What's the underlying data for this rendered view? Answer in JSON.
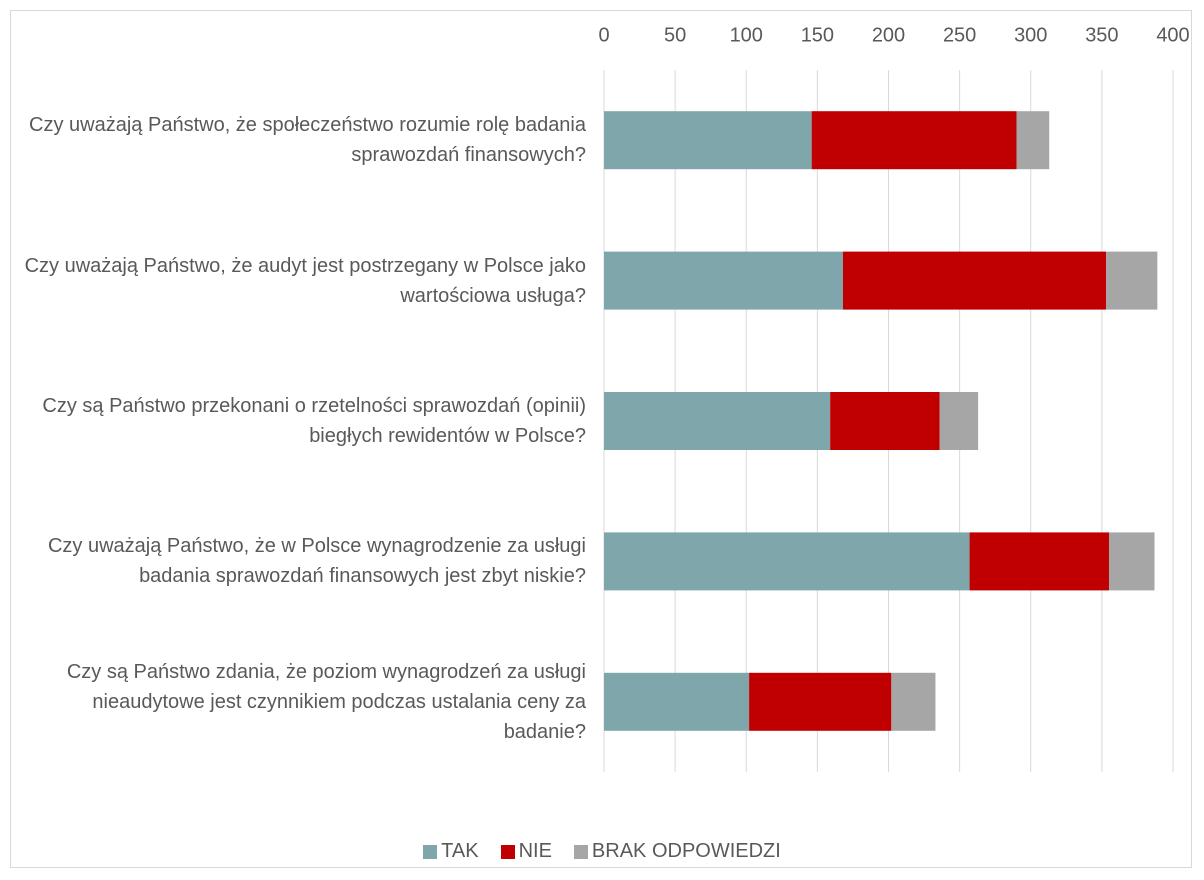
{
  "chart_data": {
    "type": "bar",
    "orientation": "horizontal",
    "stacked": true,
    "categories": [
      "Czy uważają Państwo, że społeczeństwo rozumie rolę badania sprawozdań finansowych?",
      "Czy uważają Państwo, że audyt jest postrzegany w Polsce jako wartościowa usługa?",
      "Czy są Państwo przekonani o rzetelności sprawozdań (opinii) biegłych rewidentów w Polsce?",
      "Czy uważają Państwo, że w Polsce wynagrodzenie za usługi badania sprawozdań finansowych jest zbyt niskie?",
      "Czy są Państwo zdania, że poziom wynagrodzeń za usługi nieaudytowe jest czynnikiem podczas ustalania ceny za badanie?"
    ],
    "series": [
      {
        "name": "TAK",
        "color": "#7fa6aa",
        "values": [
          146,
          168,
          159,
          257,
          102
        ]
      },
      {
        "name": "NIE",
        "color": "#c00000",
        "values": [
          144,
          185,
          77,
          98,
          100
        ]
      },
      {
        "name": "BRAK ODPOWIEDZI",
        "color": "#a6a6a6",
        "values": [
          23,
          36,
          27,
          32,
          31
        ]
      }
    ],
    "xlim": [
      0,
      400
    ],
    "xticks": [
      0,
      50,
      100,
      150,
      200,
      250,
      300,
      350,
      400
    ],
    "grid": true,
    "legend": "bottom"
  }
}
